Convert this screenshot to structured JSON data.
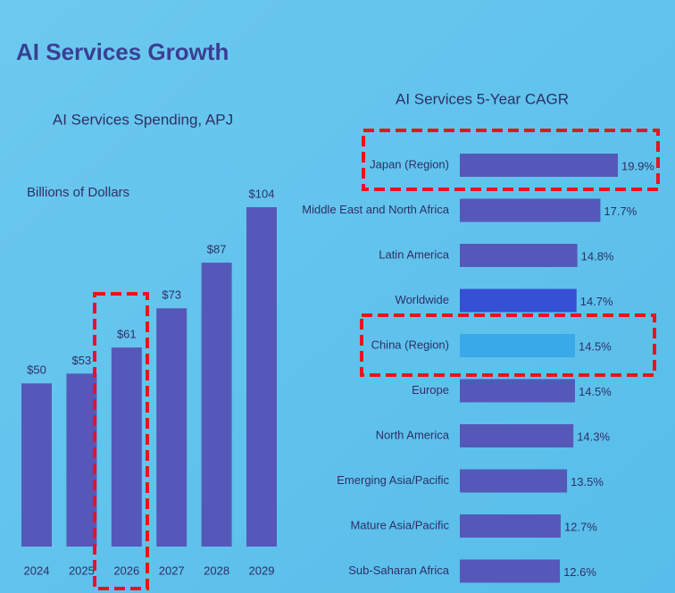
{
  "title": "AI Services Growth",
  "chart_data": [
    {
      "type": "bar",
      "title": "AI Services Spending, APJ",
      "subtitle": "Billions of Dollars",
      "categories": [
        "2024",
        "2025",
        "2026",
        "2027",
        "2028",
        "2029"
      ],
      "values": [
        50,
        53,
        61,
        73,
        87,
        104
      ],
      "value_labels": [
        "$50",
        "$53",
        "$61",
        "$73",
        "$87",
        "$104"
      ],
      "color": "#5558b9"
    },
    {
      "type": "hbar",
      "title": "AI Services 5-Year CAGR",
      "categories": [
        "Japan (Region)",
        "Middle East and North Africa",
        "Latin America",
        "Worldwide",
        "China (Region)",
        "Europe",
        "North America",
        "Emerging Asia/Pacific",
        "Mature Asia/Pacific",
        "Sub-Saharan Africa"
      ],
      "values": [
        19.9,
        17.7,
        14.8,
        14.7,
        14.5,
        14.5,
        14.3,
        13.5,
        12.7,
        12.6
      ],
      "value_labels": [
        "19.9%",
        "17.7%",
        "14.8%",
        "14.7%",
        "14.5%",
        "14.5%",
        "14.3%",
        "13.5%",
        "12.7%",
        "12.6%"
      ],
      "colors": [
        "#5558b9",
        "#5558b9",
        "#5558b9",
        "#3550d4",
        "#3aa9ea",
        "#5558b9",
        "#5558b9",
        "#5558b9",
        "#5558b9",
        "#5558b9"
      ]
    }
  ]
}
